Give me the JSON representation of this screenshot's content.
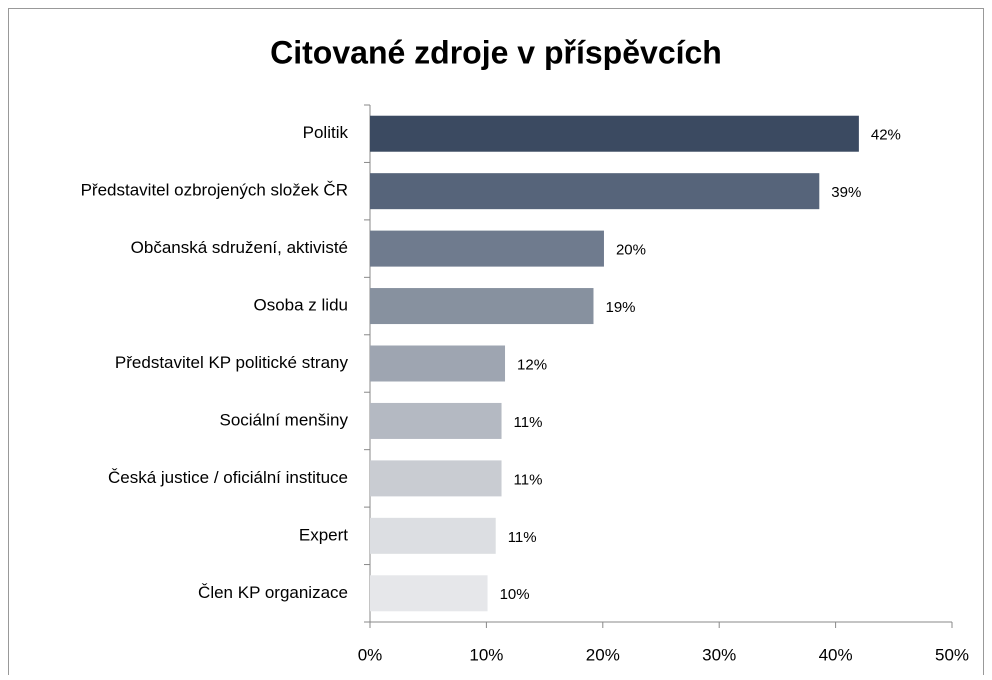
{
  "chart_data": {
    "type": "bar",
    "orientation": "horizontal",
    "title": "Citované zdroje v příspěvcích",
    "categories": [
      "Politik",
      "Představitel ozbrojených složek ČR",
      "Občanská sdružení, aktivisté",
      "Osoba z lidu",
      "Představitel KP politické strany",
      "Sociální menšiny",
      "Česká justice / oficiální instituce",
      "Expert",
      "Člen KP organizace"
    ],
    "values": [
      42,
      38.6,
      20.1,
      19.2,
      11.6,
      11.3,
      11.3,
      10.8,
      10.1
    ],
    "value_labels": [
      "42%",
      "39%",
      "20%",
      "19%",
      "12%",
      "11%",
      "11%",
      "11%",
      "10%"
    ],
    "colors": [
      "#3b4a61",
      "#56647a",
      "#6f7b8e",
      "#87919f",
      "#9ea5b1",
      "#b4b9c2",
      "#c9ccd2",
      "#dcdee2",
      "#e6e7ea"
    ],
    "xlim": [
      0,
      50
    ],
    "xticks": [
      {
        "value": 0,
        "label": "0%"
      },
      {
        "value": 10,
        "label": "10%"
      },
      {
        "value": 20,
        "label": "20%"
      },
      {
        "value": 30,
        "label": "30%"
      },
      {
        "value": 40,
        "label": "40%"
      },
      {
        "value": 50,
        "label": "50%"
      }
    ],
    "grid": false
  }
}
